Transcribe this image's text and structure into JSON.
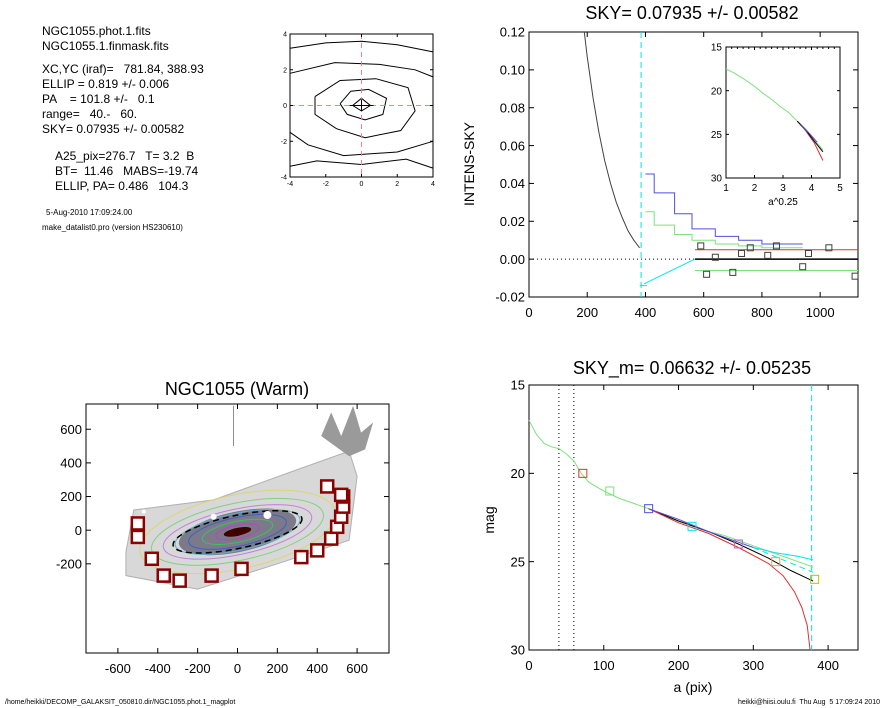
{
  "info": {
    "lines_top": [
      "NGC1055.phot.1.fits",
      "NGC1055.1.finmask.fits"
    ],
    "lines_mid": [
      "XC,YC (iraf)=   781.84, 388.93",
      "ELLIP = 0.819 +/- 0.006",
      "PA    = 101.8 +/-   0.1",
      "range=   40.-   60.",
      "SKY= 0.07935 +/- 0.00582"
    ],
    "lines_low": [
      "A25_pix=276.7   T= 3.2  B",
      "BT=  11.46   MABS=-19.74",
      "ELLIP, PA= 0.486   104.3"
    ],
    "date": "5-Aug-2010 17:09:24.00",
    "program": "make_datalist0.pro (version HS230610)"
  },
  "footer": {
    "path": "/home/heikki/DECOMP_GALAKSIT_050810.dir/NGC1055.phot.1_magplot",
    "user": "heikki@hiisi.oulu.fi  Thu Aug  5 17:09:24 2010"
  },
  "colors": {
    "cyan": "#00e5ee",
    "green": "#7ee27e",
    "blue": "#5050e0",
    "red": "#e03030",
    "grey": "#808080",
    "mask_box": "#8b0000",
    "pink_dash": "#ff8080"
  },
  "chart_data": [
    {
      "id": "contour",
      "type": "contour",
      "xlim": [
        -4,
        4
      ],
      "ylim": [
        -4,
        4
      ],
      "xticks": [
        -4,
        -2,
        0,
        2,
        4
      ],
      "yticks": [
        -4,
        -2,
        0,
        2,
        4
      ],
      "crosshair": [
        0,
        0
      ]
    },
    {
      "id": "sky",
      "type": "line",
      "title": "SKY= 0.07935 +/- 0.00582",
      "ylabel": "INTENS-SKY",
      "xlim": [
        0,
        1130
      ],
      "ylim": [
        -0.02,
        0.12
      ],
      "xticks": [
        0,
        200,
        400,
        600,
        800,
        1000
      ],
      "yticks": [
        -0.02,
        0.0,
        0.02,
        0.04,
        0.06,
        0.08,
        0.1,
        0.12
      ],
      "ytick_labels": [
        "-0.02",
        "0.00",
        "0.02",
        "0.04",
        "0.06",
        "0.08",
        "0.10",
        "0.12"
      ],
      "vline": 385,
      "profile": {
        "x": [
          190,
          200,
          220,
          240,
          260,
          280,
          300,
          320,
          340,
          360,
          380
        ],
        "y": [
          0.12,
          0.107,
          0.085,
          0.067,
          0.052,
          0.04,
          0.03,
          0.022,
          0.015,
          0.01,
          0.006
        ]
      },
      "series": [
        {
          "color": "blue",
          "x": [
            400,
            430,
            430,
            500,
            500,
            560,
            560,
            640,
            640,
            720,
            720,
            800,
            800,
            940
          ],
          "y": [
            0.045,
            0.045,
            0.035,
            0.035,
            0.024,
            0.024,
            0.016,
            0.016,
            0.012,
            0.012,
            0.01,
            0.01,
            0.008,
            0.008
          ]
        },
        {
          "color": "green",
          "x": [
            400,
            430,
            430,
            500,
            500,
            560,
            560,
            640,
            640,
            720,
            720,
            800,
            800,
            940
          ],
          "y": [
            0.025,
            0.025,
            0.018,
            0.018,
            0.013,
            0.013,
            0.01,
            0.01,
            0.008,
            0.008,
            0.007,
            0.007,
            0.006,
            0.006
          ]
        },
        {
          "color": "red",
          "x": [
            570,
            1130
          ],
          "y": [
            0.005,
            0.005
          ]
        },
        {
          "color": "green",
          "x": [
            570,
            1130
          ],
          "y": [
            -0.006,
            -0.006
          ]
        },
        {
          "color": "cyan",
          "x": [
            395,
            570
          ],
          "y": [
            -0.013,
            0.0
          ]
        },
        {
          "color": "cyan",
          "x": [
            380,
            405
          ],
          "y": [
            -0.014,
            -0.014
          ]
        }
      ],
      "squares": {
        "x": [
          590,
          610,
          640,
          700,
          730,
          760,
          820,
          850,
          940,
          960,
          1030,
          1120
        ],
        "y": [
          0.007,
          -0.008,
          0.001,
          -0.007,
          0.003,
          0.006,
          0.002,
          0.007,
          -0.004,
          0.003,
          0.006,
          -0.009
        ]
      },
      "zero_dotted": 0.0,
      "zero_solid_from": 570,
      "inset": {
        "xlabel": "a^0.25",
        "xlim": [
          1,
          5
        ],
        "ylim": [
          15,
          30
        ],
        "xticks": [
          1,
          2,
          3,
          4,
          5
        ],
        "yticks": [
          15,
          20,
          25,
          30
        ],
        "series": [
          {
            "color": "green",
            "x": [
              1.0,
              1.3,
              1.6,
              2.0,
              2.3,
              2.6,
              2.9,
              3.2,
              3.5,
              3.8,
              4.1,
              4.4
            ],
            "y": [
              17.5,
              18.0,
              18.6,
              19.5,
              20.3,
              21.0,
              21.8,
              22.5,
              23.5,
              24.4,
              25.6,
              26.8
            ]
          },
          {
            "color": "red",
            "x": [
              3.5,
              3.8,
              4.1,
              4.4
            ],
            "y": [
              23.5,
              24.6,
              26.0,
              28.0
            ]
          },
          {
            "color": "black",
            "x": [
              3.5,
              3.8,
              4.1,
              4.4
            ],
            "y": [
              23.5,
              24.5,
              25.8,
              27.0
            ]
          },
          {
            "color": "blue",
            "x": [
              3.6,
              3.9,
              4.2
            ],
            "y": [
              23.9,
              24.8,
              25.9
            ]
          }
        ]
      }
    },
    {
      "id": "image",
      "type": "scatter",
      "title": "NGC1055 (Warm)",
      "xlim": [
        -760,
        760
      ],
      "ylim": [
        -730,
        750
      ],
      "xticks": [
        -600,
        -400,
        -200,
        0,
        200,
        400,
        600
      ],
      "yticks": [
        -200,
        0,
        200,
        400,
        600
      ],
      "mask_boxes": {
        "x": [
          -500,
          -500,
          -430,
          -370,
          -290,
          -130,
          20,
          320,
          400,
          470,
          500,
          520,
          530,
          530,
          520,
          450
        ],
        "y": [
          40,
          -40,
          -170,
          -270,
          -300,
          -270,
          -230,
          -160,
          -120,
          -50,
          20,
          80,
          140,
          200,
          210,
          260
        ]
      },
      "ellipses": [
        {
          "color": "#d8d870",
          "a": 500,
          "b": 220
        },
        {
          "color": "#80d080",
          "a": 440,
          "b": 170
        },
        {
          "color": "#c080e0",
          "a": 380,
          "b": 135
        },
        {
          "color": "#60b0d0",
          "a": 320,
          "b": 110
        },
        {
          "color": "#4060c0",
          "a": 250,
          "b": 85
        },
        {
          "color": "#40c060",
          "a": 180,
          "b": 62
        },
        {
          "color": "#c040c0",
          "a": 110,
          "b": 40
        },
        {
          "color": "#ff8080",
          "a": 60,
          "b": 22
        }
      ],
      "dashed_ellipse": {
        "a": 330,
        "b": 98
      },
      "center": [
        0,
        -10
      ]
    },
    {
      "id": "mag",
      "type": "line",
      "title": "SKY_m=  0.06632 +/- 0.05235",
      "xlabel": "a (pix)",
      "ylabel": "mag",
      "xlim": [
        0,
        440
      ],
      "ylim": [
        30,
        15
      ],
      "xticks": [
        0,
        100,
        200,
        300,
        400
      ],
      "yticks": [
        15,
        20,
        25,
        30
      ],
      "dotted_vlines": [
        40,
        60
      ],
      "dashed_vline": 378,
      "series": [
        {
          "color": "green",
          "x": [
            0,
            10,
            20,
            30,
            40,
            50,
            60,
            70,
            80,
            100,
            120,
            140,
            160,
            180,
            200,
            220,
            240,
            260,
            280,
            300,
            320,
            340,
            360,
            380
          ],
          "y": [
            17.0,
            17.8,
            18.3,
            18.5,
            18.6,
            18.9,
            19.3,
            20.0,
            20.5,
            21.0,
            21.4,
            21.7,
            22.0,
            22.4,
            22.7,
            23.0,
            23.3,
            23.5,
            23.8,
            24.1,
            24.4,
            24.7,
            25.0,
            25.3
          ]
        },
        {
          "color": "black",
          "x": [
            160,
            200,
            240,
            280,
            320,
            350,
            370,
            380
          ],
          "y": [
            22.0,
            22.7,
            23.3,
            24.0,
            24.8,
            25.5,
            25.9,
            26.1
          ]
        },
        {
          "color": "red",
          "x": [
            160,
            200,
            240,
            280,
            320,
            340,
            355,
            365,
            372,
            376
          ],
          "y": [
            22.0,
            22.8,
            23.4,
            24.2,
            25.1,
            25.8,
            26.7,
            27.6,
            28.6,
            30.0
          ]
        },
        {
          "color": "blue",
          "x": [
            160,
            200,
            240,
            280,
            300
          ],
          "y": [
            22.0,
            22.6,
            23.3,
            23.9,
            24.2
          ]
        },
        {
          "color": "cyan",
          "x": [
            300,
            330,
            360,
            380
          ],
          "y": [
            24.2,
            24.5,
            24.7,
            24.9
          ]
        }
      ],
      "squares": [
        {
          "color": "red",
          "x": 72,
          "y": 20.0
        },
        {
          "color": "green",
          "x": 108,
          "y": 21.0
        },
        {
          "color": "blue",
          "x": 160,
          "y": 22.0
        },
        {
          "color": "cyan",
          "x": 218,
          "y": 23.0
        },
        {
          "color": "#c060c0",
          "x": 280,
          "y": 24.0
        },
        {
          "color": "#e0a060",
          "x": 330,
          "y": 25.0
        },
        {
          "color": "#c0c000",
          "x": 382,
          "y": 26.0
        }
      ]
    }
  ]
}
